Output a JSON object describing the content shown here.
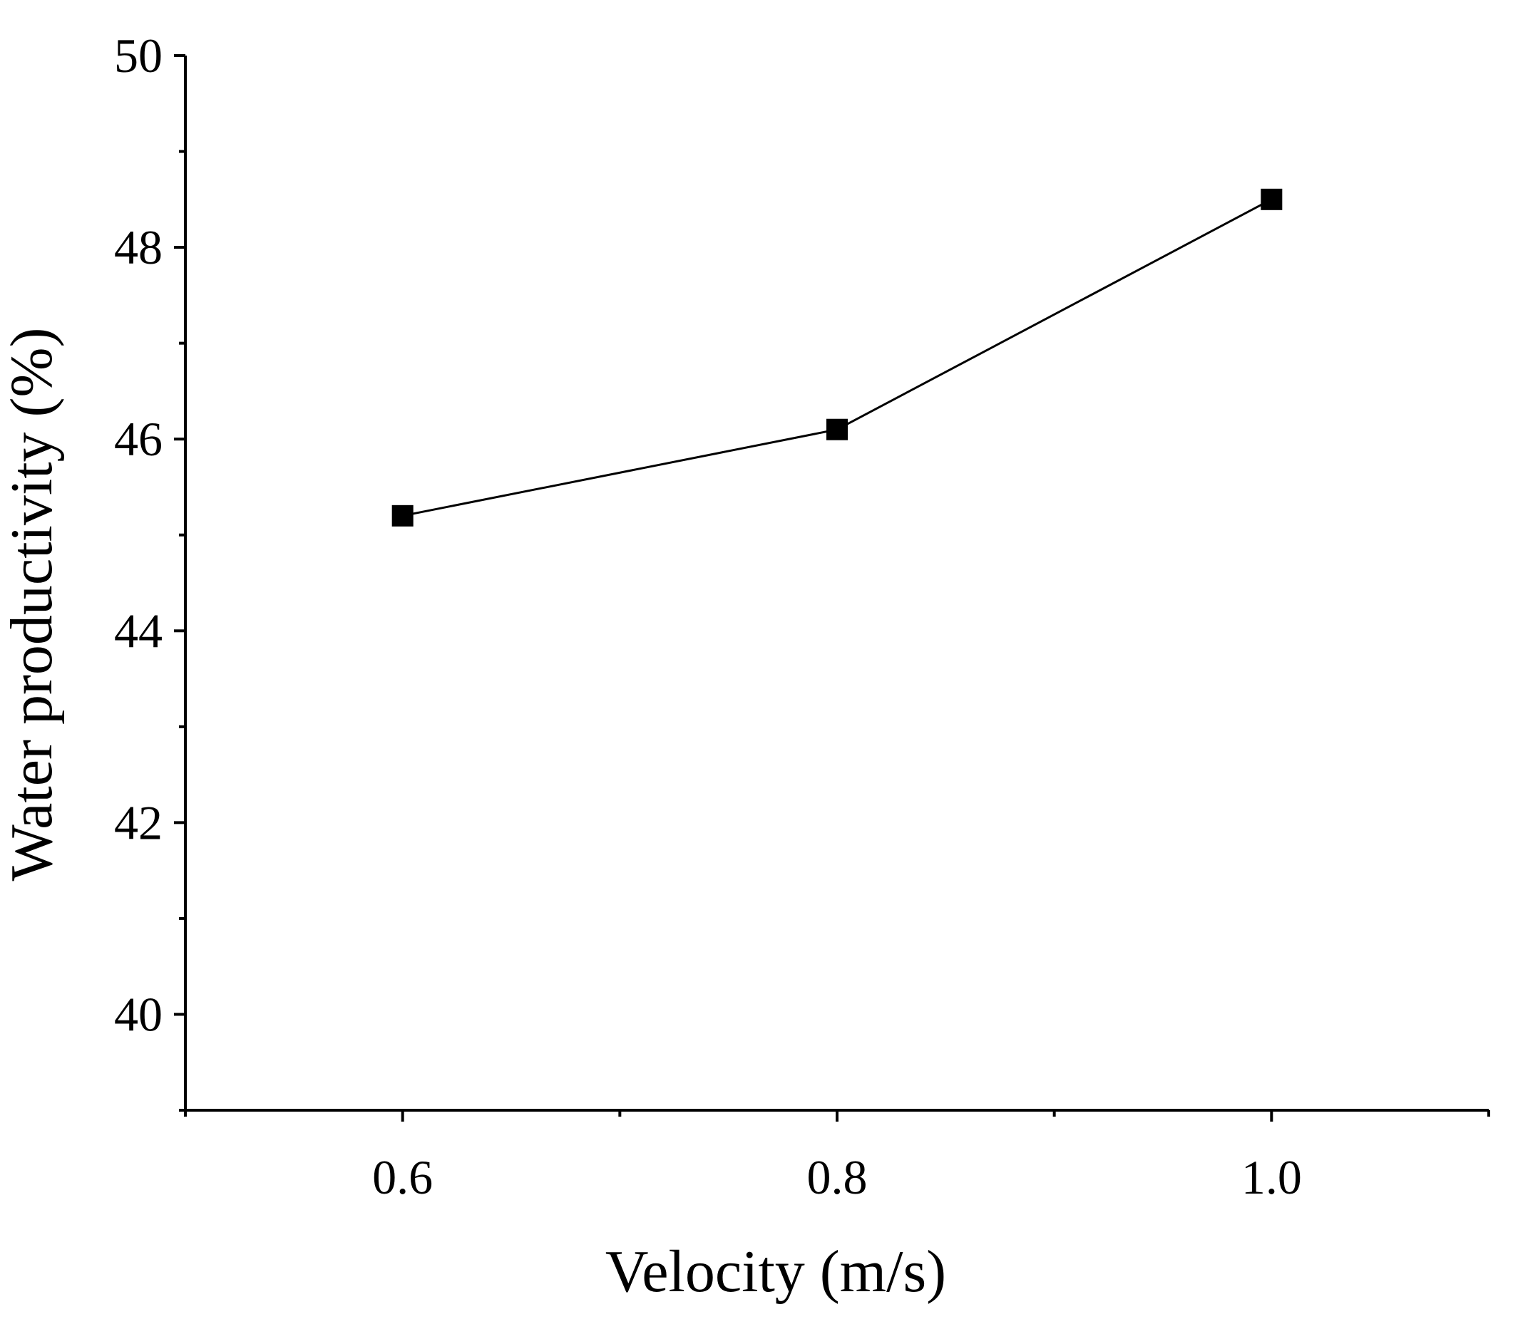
{
  "chart_data": {
    "type": "line",
    "title": "",
    "xlabel": "Velocity (m/s)",
    "ylabel": "Water productivity (%)",
    "xlim": [
      0.5,
      1.1
    ],
    "ylim": [
      39,
      50
    ],
    "x_ticks": [
      0.6,
      0.8,
      1.0
    ],
    "x_tick_labels": [
      "0.6",
      "0.8",
      "1.0"
    ],
    "x_minor_ticks": [
      0.5,
      0.7,
      0.9,
      1.1
    ],
    "y_ticks": [
      40,
      42,
      44,
      46,
      48,
      50
    ],
    "y_tick_labels": [
      "40",
      "42",
      "44",
      "46",
      "48",
      "50"
    ],
    "y_minor_ticks": [
      39,
      41,
      43,
      45,
      47,
      49
    ],
    "grid": false,
    "legend": "none",
    "series": [
      {
        "name": "Water productivity",
        "marker": "square",
        "color": "#000000",
        "x": [
          0.6,
          0.8,
          1.0
        ],
        "values": [
          45.2,
          46.1,
          48.5
        ]
      }
    ]
  }
}
